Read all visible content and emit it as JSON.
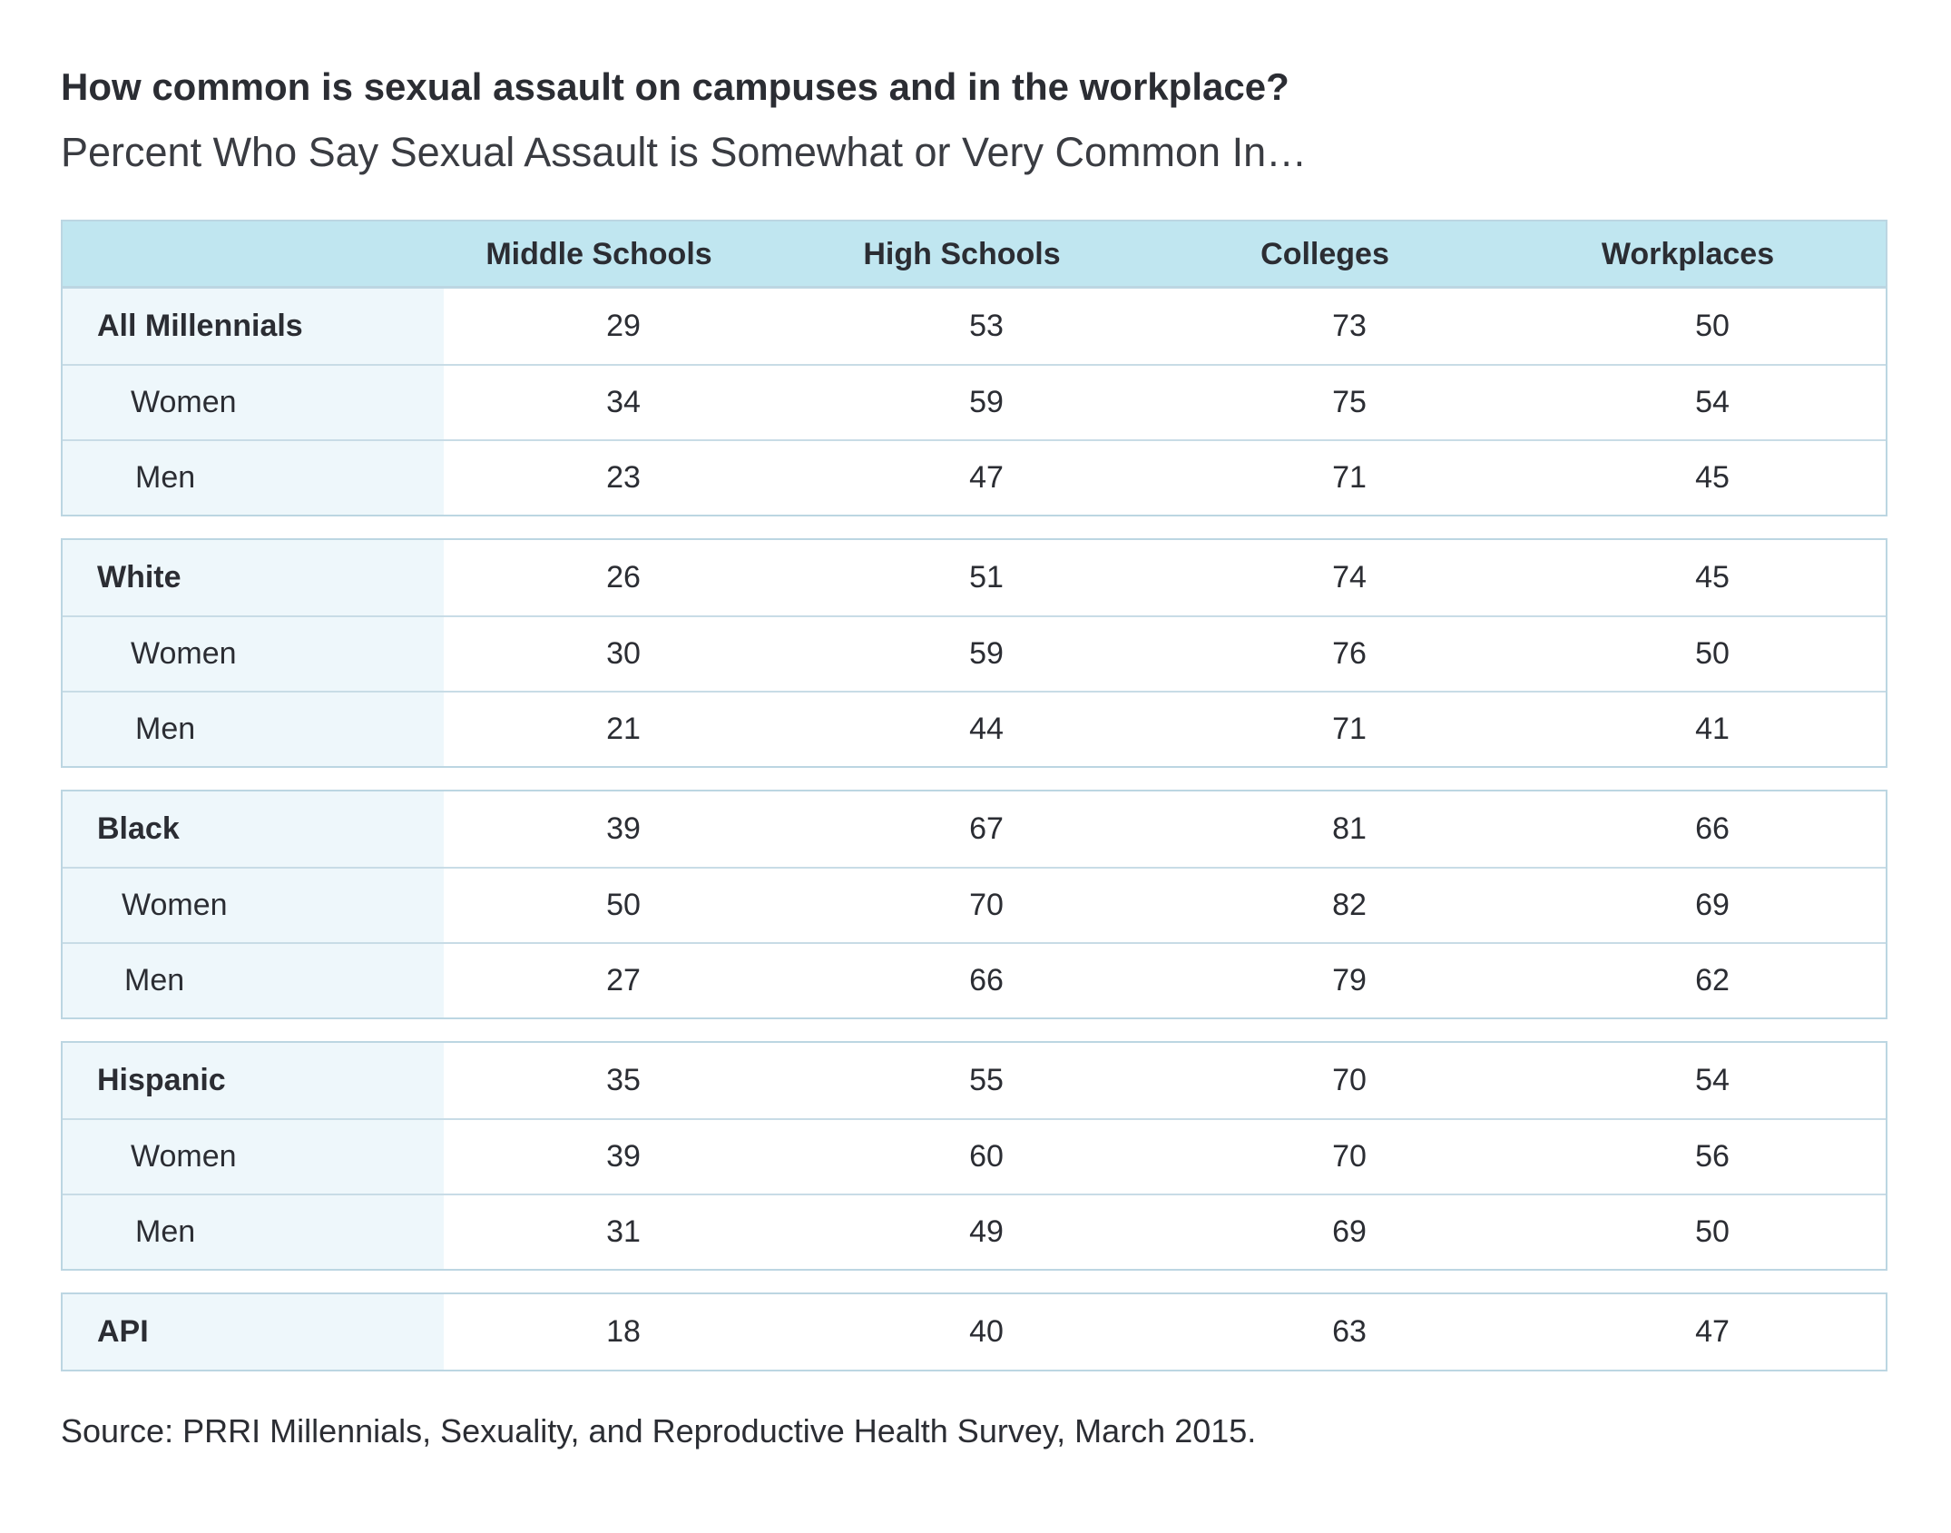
{
  "chart_data": {
    "type": "table",
    "title": "How common is sexual assault on campuses and in the workplace?",
    "subtitle": "Percent Who Say Sexual Assault is Somewhat or Very Common In…",
    "columns": [
      "Middle Schools",
      "High Schools",
      "Colleges",
      "Workplaces"
    ],
    "groups": [
      {
        "rows": [
          {
            "label": "All Millennials",
            "values": [
              "29",
              "53",
              "73",
              "50"
            ]
          },
          {
            "label": "Women",
            "values": [
              "34",
              "59",
              "75",
              "54"
            ]
          },
          {
            "label": "Men",
            "values": [
              "23",
              "47",
              "71",
              "45"
            ]
          }
        ]
      },
      {
        "rows": [
          {
            "label": "White",
            "values": [
              "26",
              "51",
              "74",
              "45"
            ]
          },
          {
            "label": "Women",
            "values": [
              "30",
              "59",
              "76",
              "50"
            ]
          },
          {
            "label": "Men",
            "values": [
              "21",
              "44",
              "71",
              "41"
            ]
          }
        ]
      },
      {
        "rows": [
          {
            "label": "Black",
            "values": [
              "39",
              "67",
              "81",
              "66"
            ]
          },
          {
            "label": "Women",
            "values": [
              "50",
              "70",
              "82",
              "69"
            ]
          },
          {
            "label": "Men",
            "values": [
              "27",
              "66",
              "79",
              "62"
            ]
          }
        ]
      },
      {
        "rows": [
          {
            "label": "Hispanic",
            "values": [
              "35",
              "55",
              "70",
              "54"
            ]
          },
          {
            "label": "Women",
            "values": [
              "39",
              "60",
              "70",
              "56"
            ]
          },
          {
            "label": "Men",
            "values": [
              "31",
              "49",
              "69",
              "50"
            ]
          }
        ]
      },
      {
        "rows": [
          {
            "label": "API",
            "values": [
              "18",
              "40",
              "63",
              "47"
            ]
          }
        ]
      }
    ],
    "source": "Source: PRRI Millennials, Sexuality, and Reproductive Health Survey, March 2015."
  },
  "colors": {
    "header_background": "#c0e6f0",
    "label_column_background": "#eef7fb",
    "border": "#bcd6e2",
    "text": "#2b2d33"
  }
}
